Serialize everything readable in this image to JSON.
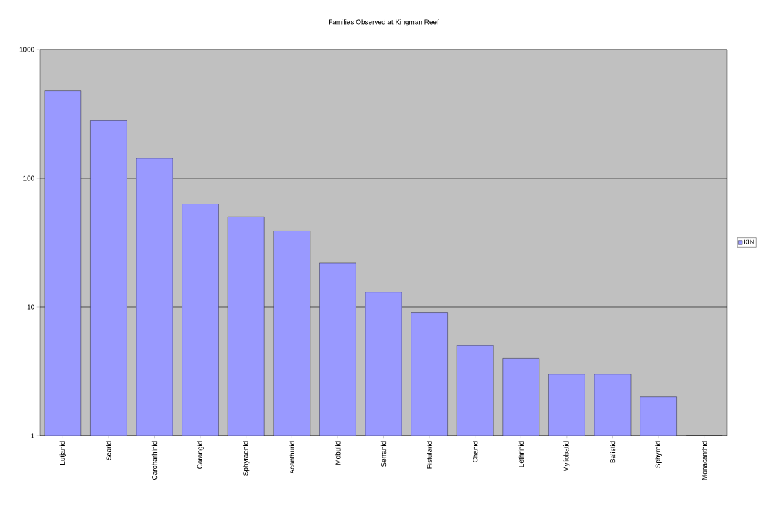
{
  "chart_data": {
    "type": "bar",
    "title": "Families Observed at Kingman Reef",
    "categories": [
      "Lutjanid",
      "Scarid",
      "Carcharhinid",
      "Carangid",
      "Sphyraenid",
      "Acanthurid",
      "Mobulid",
      "Serranid",
      "Fistularid",
      "Chanid",
      "Lethrinid",
      "Myliobatid",
      "Balistid",
      "Sphyrnid",
      "Monacanthid"
    ],
    "series": [
      {
        "name": "KIN",
        "color": "#9999ff",
        "values": [
          480,
          280,
          143,
          63,
          50,
          39,
          22,
          13,
          9,
          5,
          4,
          3,
          3,
          2,
          1
        ]
      }
    ],
    "log": true,
    "ylim": [
      1,
      1000
    ],
    "yticks": [
      1,
      10,
      100,
      1000
    ],
    "grid": "y",
    "legend": "right"
  }
}
